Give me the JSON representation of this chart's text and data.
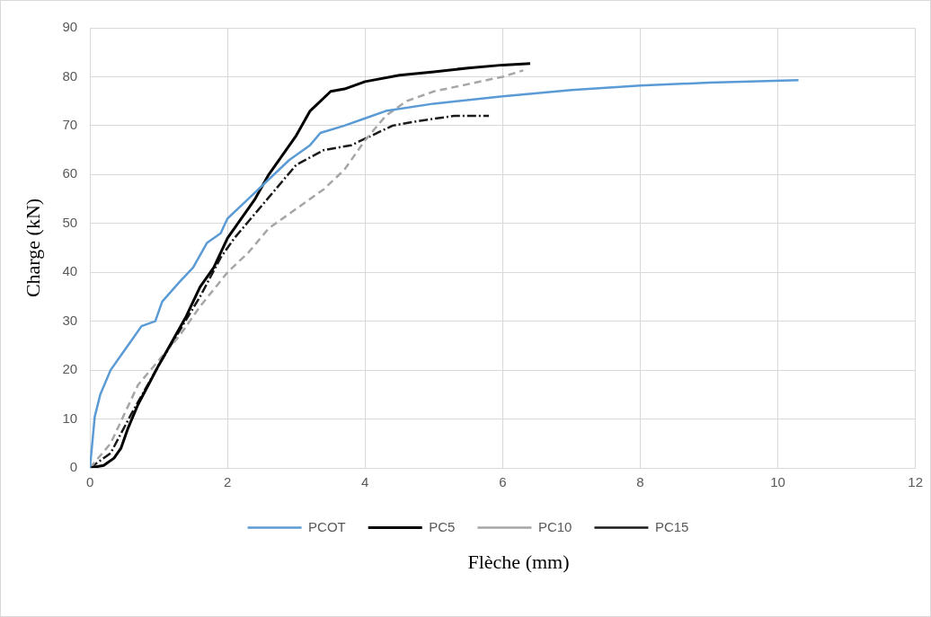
{
  "chart_data": {
    "type": "line",
    "xlabel": "Flèche (mm)",
    "ylabel": "Charge (kN)",
    "xlim": [
      0,
      12
    ],
    "xticks": [
      0,
      2,
      4,
      6,
      8,
      10,
      12
    ],
    "ylim": [
      0,
      90
    ],
    "yticks": [
      0,
      10,
      20,
      30,
      40,
      50,
      60,
      70,
      80,
      90
    ],
    "grid": true,
    "legend": "bottom",
    "marker": "none",
    "series": [
      {
        "name": "PCOT",
        "color": "#5b9bd5",
        "line_style": "solid",
        "x": [
          0,
          0.07,
          0.15,
          0.3,
          0.45,
          0.6,
          0.75,
          0.95,
          1.05,
          1.3,
          1.5,
          1.7,
          1.9,
          2.0,
          2.3,
          2.6,
          2.9,
          3.2,
          3.35,
          3.7,
          4.0,
          4.3,
          5,
          6,
          7,
          8,
          9,
          10.3
        ],
        "values": [
          0,
          10.5,
          15,
          20,
          23,
          26,
          29,
          30,
          34,
          38,
          41,
          46,
          48,
          51,
          55,
          59,
          63,
          66,
          68.5,
          70,
          71.5,
          73,
          74.5,
          76,
          77.3,
          78.2,
          78.8,
          79.3
        ]
      },
      {
        "name": "PC5",
        "color": "#000000",
        "line_style": "solid",
        "x": [
          0,
          0.2,
          0.35,
          0.45,
          0.55,
          0.7,
          0.85,
          1.0,
          1.2,
          1.4,
          1.6,
          1.8,
          2.0,
          2.2,
          2.4,
          2.6,
          2.8,
          3.0,
          3.2,
          3.5,
          3.7,
          4.0,
          4.5,
          5.0,
          5.5,
          6.0,
          6.4
        ],
        "values": [
          0,
          0.5,
          2,
          4,
          8,
          13,
          17,
          21,
          26,
          31,
          37,
          41,
          47,
          51,
          55,
          60,
          64,
          68,
          73,
          77,
          77.5,
          79,
          80.3,
          81,
          81.8,
          82.4,
          82.7
        ]
      },
      {
        "name": "PC10",
        "color": "#a6a6a6",
        "line_style": "dashed",
        "x": [
          0,
          0.3,
          0.5,
          0.7,
          1.0,
          1.3,
          1.6,
          2.0,
          2.3,
          2.6,
          3.0,
          3.4,
          3.7,
          4.0,
          4.3,
          4.6,
          5.0,
          5.5,
          6.0,
          6.3
        ],
        "values": [
          0,
          5,
          11,
          17,
          22,
          27,
          33,
          40,
          44,
          49,
          53,
          57,
          61,
          67,
          72,
          75,
          77,
          78.5,
          80,
          81.3
        ]
      },
      {
        "name": "PC15",
        "color": "#1a1a1a",
        "line_style": "dashdot",
        "x": [
          0,
          0.3,
          0.6,
          0.8,
          1.0,
          1.3,
          1.6,
          1.9,
          2.1,
          2.4,
          2.7,
          3.0,
          3.4,
          3.8,
          4.1,
          4.4,
          4.8,
          5.3,
          5.8
        ],
        "values": [
          0,
          3,
          11,
          16,
          21,
          28,
          35,
          43,
          47,
          52,
          57,
          62,
          65,
          66,
          68,
          70,
          71,
          72,
          72
        ]
      }
    ]
  }
}
